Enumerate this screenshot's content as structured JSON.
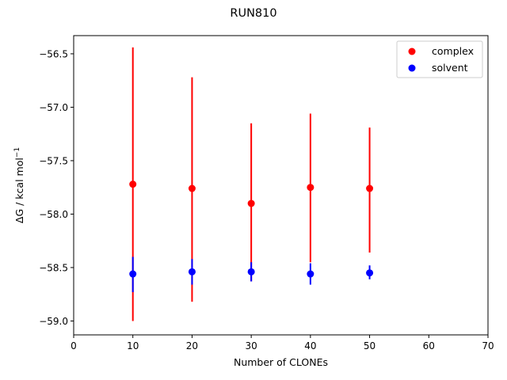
{
  "chart_data": {
    "type": "scatter",
    "title": "RUN810",
    "xlabel": "Number of CLONEs",
    "ylabel_main": "ΔG / kcal mol",
    "ylabel_sup": "−1",
    "xlim": [
      0,
      70
    ],
    "ylim": [
      -59.13,
      -56.33
    ],
    "xticks": [
      0,
      10,
      20,
      30,
      40,
      50,
      60,
      70
    ],
    "xtick_labels": [
      "0",
      "10",
      "20",
      "30",
      "40",
      "50",
      "60",
      "70"
    ],
    "yticks": [
      -59.0,
      -58.5,
      -58.0,
      -57.5,
      -57.0,
      -56.5
    ],
    "ytick_labels": [
      "−59.0",
      "−58.5",
      "−58.0",
      "−57.5",
      "−57.0",
      "−56.5"
    ],
    "grid": false,
    "legend_position": "top-right",
    "series": [
      {
        "name": "complex",
        "color": "#ff0000",
        "points": [
          {
            "x": 10,
            "y": -57.72,
            "err_low": -59.0,
            "err_high": -56.44
          },
          {
            "x": 20,
            "y": -57.76,
            "err_low": -58.82,
            "err_high": -56.72
          },
          {
            "x": 30,
            "y": -57.9,
            "err_low": -58.63,
            "err_high": -57.15
          },
          {
            "x": 40,
            "y": -57.75,
            "err_low": -58.45,
            "err_high": -57.06
          },
          {
            "x": 50,
            "y": -57.76,
            "err_low": -58.36,
            "err_high": -57.19
          }
        ]
      },
      {
        "name": "solvent",
        "color": "#0000ff",
        "points": [
          {
            "x": 10,
            "y": -58.56,
            "err_low": -58.73,
            "err_high": -58.4
          },
          {
            "x": 20,
            "y": -58.54,
            "err_low": -58.66,
            "err_high": -58.42
          },
          {
            "x": 30,
            "y": -58.54,
            "err_low": -58.63,
            "err_high": -58.45
          },
          {
            "x": 40,
            "y": -58.56,
            "err_low": -58.66,
            "err_high": -58.46
          },
          {
            "x": 50,
            "y": -58.55,
            "err_low": -58.61,
            "err_high": -58.48
          }
        ]
      }
    ]
  }
}
